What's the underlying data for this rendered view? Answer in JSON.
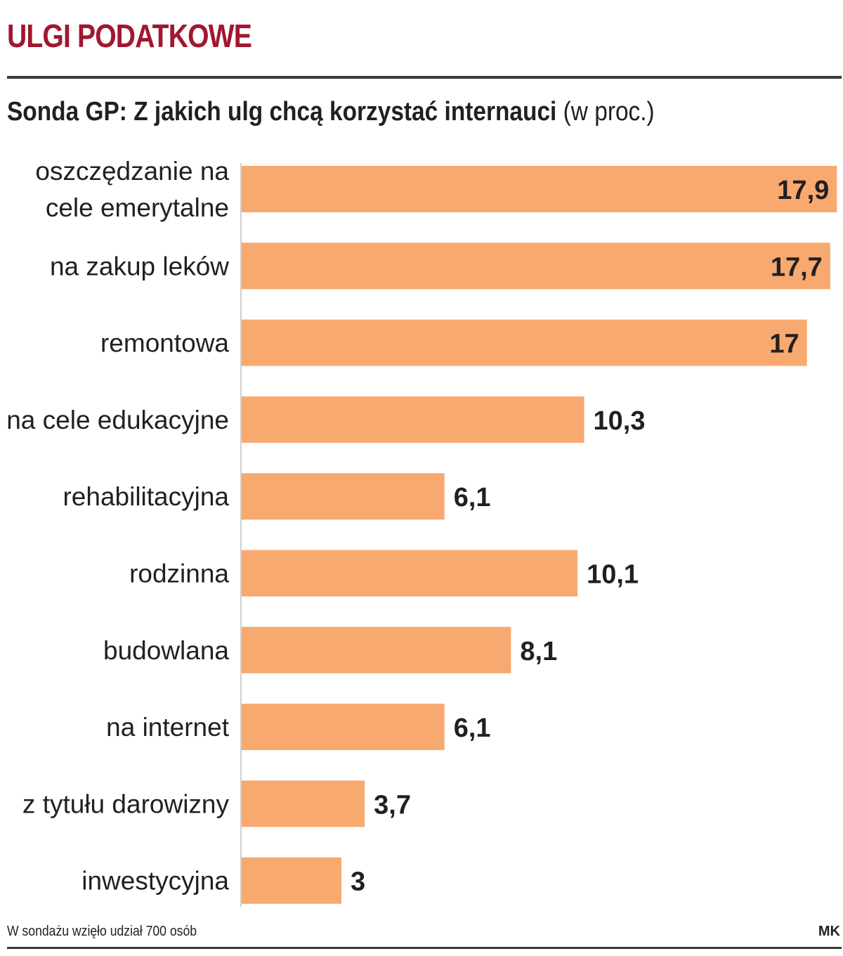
{
  "header": {
    "title": "ULGI PODATKOWE",
    "subtitle_main": "Sonda GP: Z jakich ulg chcą korzystać internauci",
    "subtitle_unit": "(w proc.)"
  },
  "footer": {
    "note": "W sondażu wzięło udział 700 osób",
    "credit": "MK"
  },
  "colors": {
    "bar": "#f7a96f",
    "title": "#a0172f",
    "text": "#231f20"
  },
  "chart_data": {
    "type": "bar",
    "orientation": "horizontal",
    "title": "Sonda GP: Z jakich ulg chcą korzystać internauci (w proc.)",
    "xlabel": "",
    "ylabel": "",
    "xlim": [
      0,
      18
    ],
    "categories": [
      [
        "oszczędzanie na",
        "cele emerytalne"
      ],
      [
        "na zakup leków"
      ],
      [
        "remontowa"
      ],
      [
        "na cele edukacyjne"
      ],
      [
        "rehabilitacyjna"
      ],
      [
        "rodzinna"
      ],
      [
        "budowlana"
      ],
      [
        "na internet"
      ],
      [
        "z tytułu darowizny"
      ],
      [
        "inwestycyjna"
      ]
    ],
    "values": [
      17.9,
      17.7,
      17,
      10.3,
      6.1,
      10.1,
      8.1,
      6.1,
      3.7,
      3
    ],
    "value_labels": [
      "17,9",
      "17,7",
      "17",
      "10,3",
      "6,1",
      "10,1",
      "8,1",
      "6,1",
      "3,7",
      "3"
    ]
  }
}
